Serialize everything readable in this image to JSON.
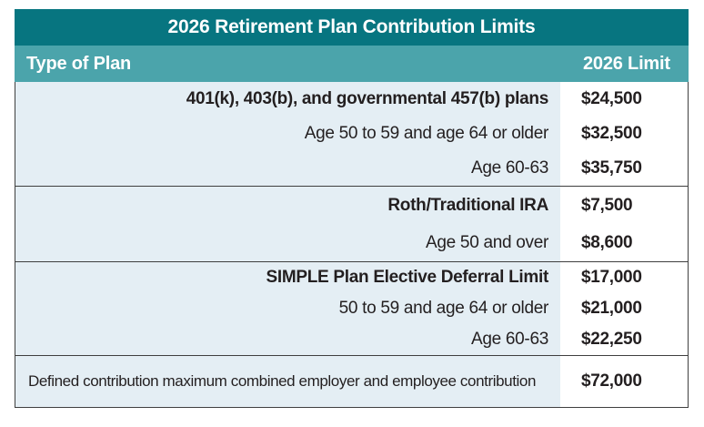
{
  "table": {
    "title": "2026 Retirement Plan Contribution Limits",
    "columns": [
      "Type of Plan",
      "2026 Limit"
    ],
    "colors": {
      "title_bar_bg": "#077580",
      "header_row_bg": "#4BA4AB",
      "plan_column_bg": "#E4EEF4",
      "limit_column_bg": "#FFFFFF",
      "border": "#3F3F3F",
      "header_text": "#FFFFFF",
      "body_text": "#231F20"
    },
    "sections": [
      {
        "rows": [
          {
            "plan": "401(k), 403(b), and governmental 457(b) plans",
            "limit": "$24,500"
          },
          {
            "plan": "Age 50 to 59 and age 64 or older",
            "limit": "$32,500"
          },
          {
            "plan": "Age 60-63",
            "limit": "$35,750"
          }
        ]
      },
      {
        "rows": [
          {
            "plan": "Roth/Traditional IRA",
            "limit": "$7,500"
          },
          {
            "plan": "Age 50 and over",
            "limit": "$8,600"
          }
        ]
      },
      {
        "rows": [
          {
            "plan": "SIMPLE Plan Elective Deferral Limit",
            "limit": "$17,000"
          },
          {
            "plan": "50 to 59 and age 64 or older",
            "limit": "$21,000"
          },
          {
            "plan": "Age 60-63",
            "limit": "$22,250"
          }
        ]
      },
      {
        "rows": [
          {
            "plan": "Defined contribution maximum combined employer and employee contribution",
            "limit": "$72,000"
          }
        ]
      }
    ]
  }
}
